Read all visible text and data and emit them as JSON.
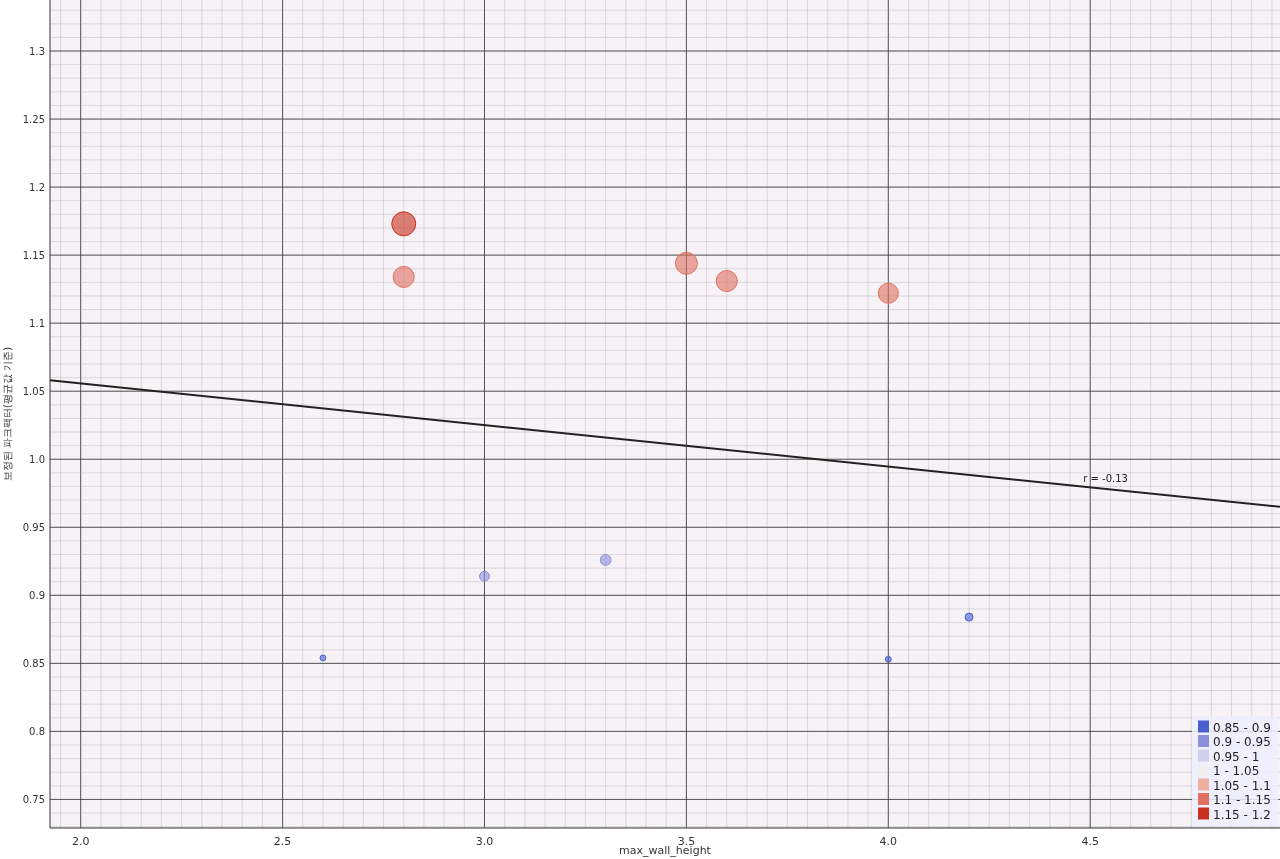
{
  "chart_data": {
    "type": "bubble",
    "xlabel": "max_wall_height",
    "ylabel": "보정된 파크팩터(평균값 기준)",
    "xlim": [
      1.924,
      4.97
    ],
    "ylim": [
      0.729,
      1.3375
    ],
    "xticks": [
      {
        "value": 2,
        "label": "2.0"
      },
      2.5,
      {
        "value": 3,
        "label": "3.0"
      },
      3.5,
      {
        "value": 4,
        "label": "4.0"
      },
      4.5
    ],
    "yticks": [
      0.75,
      0.8,
      0.85,
      0.9,
      0.95,
      {
        "value": 1,
        "label": "1.0"
      },
      1.05,
      1.1,
      1.15,
      1.2,
      1.25,
      1.3
    ],
    "grid": true,
    "legend": "bottom right",
    "marker": "circle",
    "series": [
      {
        "name": "0.85 - 0.9",
        "color": "#4a5fd0",
        "x": [
          2.6,
          4.0,
          4.2
        ],
        "values": [
          0.854,
          0.853,
          0.884
        ],
        "sizes": [
          0.06,
          0.06,
          0.11
        ]
      },
      {
        "name": "0.9 - 0.95",
        "color": "#8c8fdc",
        "x": [
          3.0,
          3.3
        ],
        "values": [
          0.914,
          0.926
        ],
        "sizes": [
          0.17,
          0.2
        ]
      },
      {
        "name": "0.95 - 1",
        "color": "#d0d0ee"
      },
      {
        "name": "1 - 1.05",
        "color": "#f0eeee"
      },
      {
        "name": "1.05 - 1.1",
        "color": "#f0b0a0"
      },
      {
        "name": "1.1 - 1.15",
        "color": "#e07060",
        "x": [
          2.8,
          3.5,
          3.6,
          4.0
        ],
        "values": [
          1.134,
          1.144,
          1.131,
          1.122
        ],
        "sizes": [
          0.77,
          0.84,
          0.77,
          0.7
        ]
      },
      {
        "name": "1.15 - 1.2",
        "color": "#c83020",
        "x": [
          2.8
        ],
        "values": [
          1.173
        ],
        "sizes": [
          1
        ]
      },
      {
        "type": "line",
        "color": "#222222",
        "marker": "none",
        "x": [
          1.924,
          4.97
        ],
        "values": [
          1.058,
          0.965
        ]
      }
    ],
    "annotations": [
      "r = -0.13"
    ]
  }
}
